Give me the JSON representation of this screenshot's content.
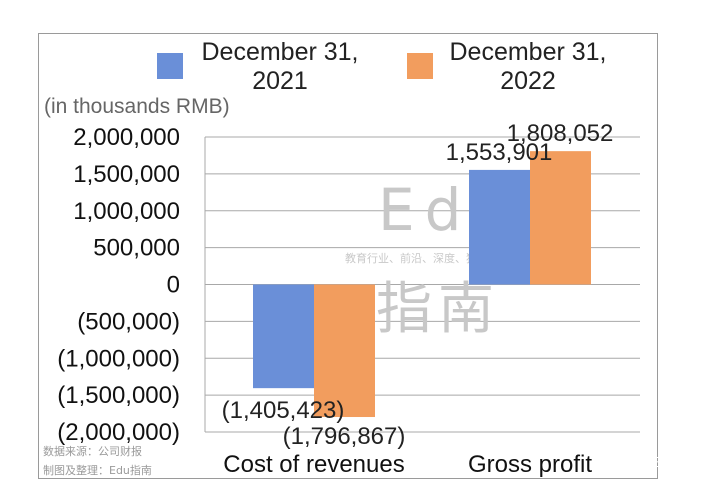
{
  "chart_data": {
    "type": "bar",
    "categories": [
      "Cost of revenues",
      "Gross profit"
    ],
    "series": [
      {
        "name": "December 31, 2021",
        "color": "#6a8fd8",
        "values": [
          -1405423,
          1553901
        ]
      },
      {
        "name": "December 31, 2022",
        "color": "#f29d5e",
        "values": [
          -1796867,
          1808052
        ]
      }
    ],
    "data_labels": [
      [
        "(1,405,423)",
        "1,553,901"
      ],
      [
        "(1,796,867)",
        "1,808,052"
      ]
    ],
    "unit_label": "(in thousands RMB)",
    "ylim": [
      -2000000,
      2000000
    ],
    "yticks": [
      2000000,
      1500000,
      1000000,
      500000,
      0,
      -500000,
      -1000000,
      -1500000,
      -2000000
    ],
    "ytick_labels": [
      "2,000,000",
      "1,500,000",
      "1,000,000",
      "500,000",
      "0",
      "(500,000)",
      "(1,000,000)",
      "(1,500,000)",
      "(2,000,000)"
    ],
    "legend_position": "top",
    "grid": true
  },
  "legend": {
    "s1_line1": "December 31,",
    "s1_line2": "2021",
    "s2_line1": "December 31,",
    "s2_line2": "2022"
  },
  "watermark": {
    "latin": "Edu",
    "slogan": "教育行业、前沿、深度、独家",
    "cn": "指南"
  },
  "source": {
    "line1": "数据来源：公司财报",
    "line2": "制图及整理：Edu指南"
  },
  "brand": "Edu指南"
}
